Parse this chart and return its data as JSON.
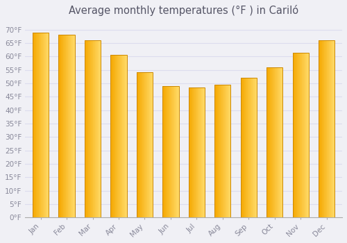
{
  "title": "Average monthly temperatures (°F ) in Cariló",
  "months": [
    "Jan",
    "Feb",
    "Mar",
    "Apr",
    "May",
    "Jun",
    "Jul",
    "Aug",
    "Sep",
    "Oct",
    "Nov",
    "Dec"
  ],
  "values": [
    69,
    68,
    66,
    60.5,
    54,
    49,
    48.5,
    49.5,
    52,
    56,
    61.5,
    66
  ],
  "bar_color_left": "#F5A800",
  "bar_color_right": "#FFD966",
  "bar_edge_color": "#CC8800",
  "background_color": "#F0F0F5",
  "grid_color": "#DDDDEE",
  "ytick_step": 5,
  "ymin": 0,
  "ymax": 73,
  "tick_label_color": "#888899",
  "title_color": "#555566",
  "title_fontsize": 10.5
}
